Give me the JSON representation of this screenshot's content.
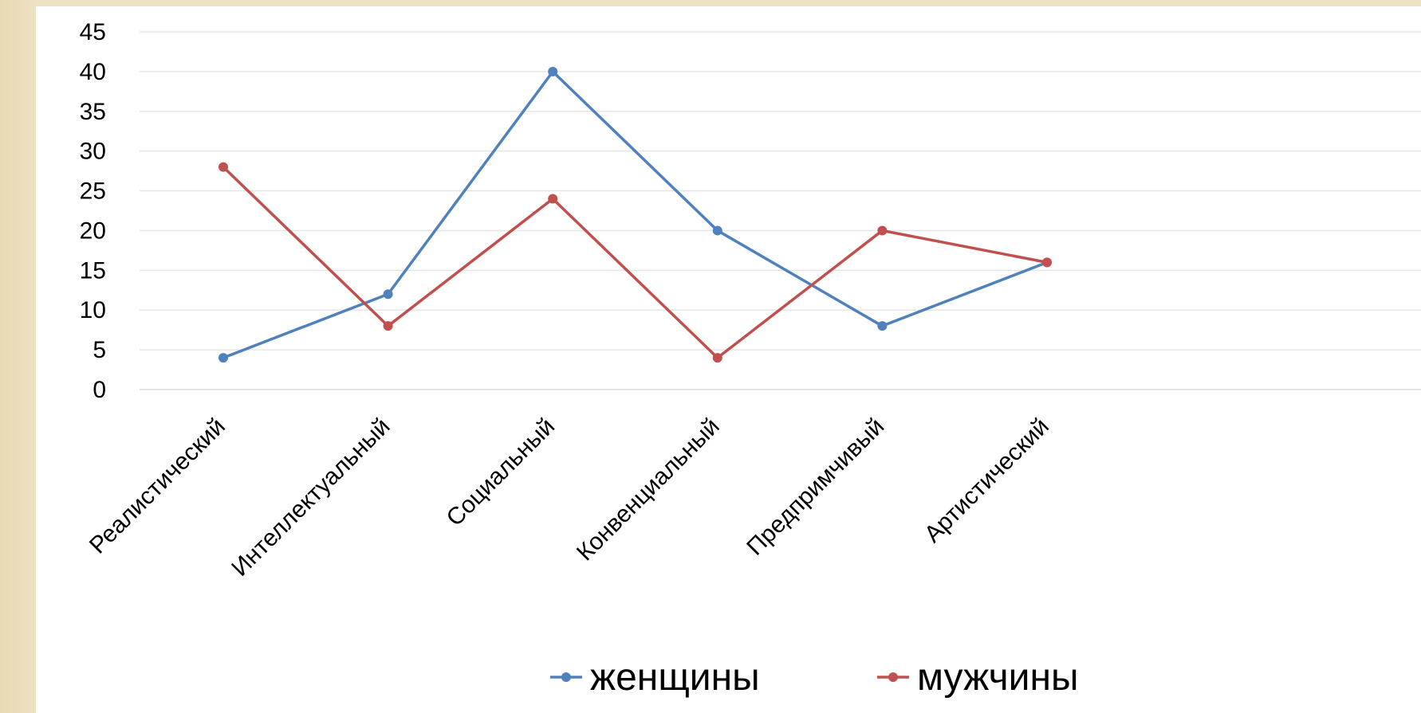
{
  "chart_data": {
    "type": "line",
    "title": "",
    "xlabel": "",
    "ylabel": "",
    "categories": [
      "Реалистический",
      "Интеллектуальный",
      "Социальный",
      "Конвенциальный",
      "Предпримчивый",
      "Артистический"
    ],
    "series": [
      {
        "name": "женщины",
        "color": "#4F81BD",
        "values": [
          4,
          12,
          40,
          20,
          8,
          16
        ]
      },
      {
        "name": "мужчины",
        "color": "#C0504D",
        "values": [
          28,
          8,
          24,
          4,
          20,
          16
        ]
      }
    ],
    "ylim": [
      0,
      45
    ],
    "yticks": [
      "0",
      "5",
      "10",
      "15",
      "20",
      "25",
      "30",
      "35",
      "40",
      "45"
    ],
    "grid": true,
    "legend": "bottom"
  }
}
